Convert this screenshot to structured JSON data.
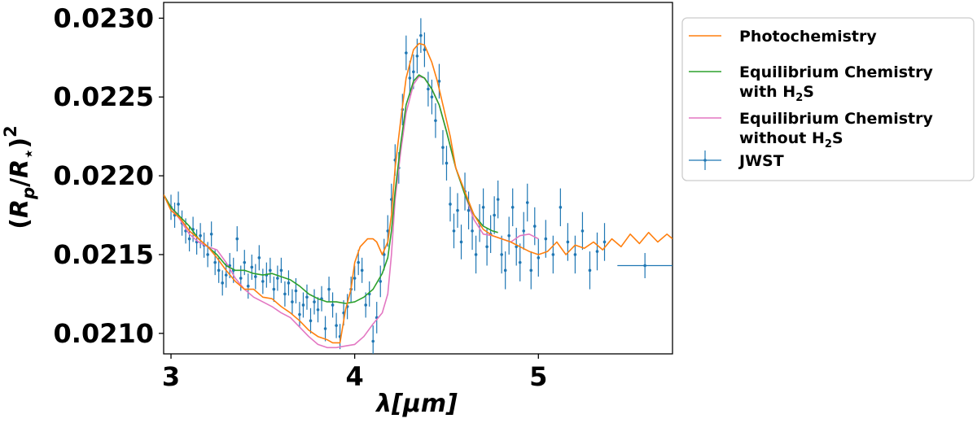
{
  "chart_data": {
    "type": "line",
    "title": "",
    "xlabel": "λ[μm]",
    "ylabel": "(Rp/R⋆)²",
    "xlim": [
      2.96,
      5.73
    ],
    "ylim": [
      0.02087,
      0.0231
    ],
    "xticks": [
      {
        "value": 3,
        "label": "3"
      },
      {
        "value": 4,
        "label": "4"
      },
      {
        "value": 5,
        "label": "5"
      }
    ],
    "yticks": [
      {
        "value": 0.021,
        "label": "0.0210"
      },
      {
        "value": 0.0215,
        "label": "0.0215"
      },
      {
        "value": 0.022,
        "label": "0.0220"
      },
      {
        "value": 0.0225,
        "label": "0.0225"
      },
      {
        "value": 0.023,
        "label": "0.0230"
      }
    ],
    "grid": false,
    "legend_position": "outside-right",
    "series": [
      {
        "name": "Photochemistry",
        "legend_lines": [
          "Photochemistry"
        ],
        "color": "#ff7f0e",
        "points": [
          [
            2.96,
            0.02188
          ],
          [
            3.0,
            0.02178
          ],
          [
            3.05,
            0.02173
          ],
          [
            3.1,
            0.02165
          ],
          [
            3.15,
            0.0216
          ],
          [
            3.2,
            0.02155
          ],
          [
            3.25,
            0.02148
          ],
          [
            3.3,
            0.0214
          ],
          [
            3.35,
            0.02133
          ],
          [
            3.4,
            0.02128
          ],
          [
            3.45,
            0.02128
          ],
          [
            3.5,
            0.02123
          ],
          [
            3.55,
            0.02122
          ],
          [
            3.6,
            0.02117
          ],
          [
            3.65,
            0.02113
          ],
          [
            3.7,
            0.02108
          ],
          [
            3.75,
            0.02102
          ],
          [
            3.8,
            0.02098
          ],
          [
            3.85,
            0.02096
          ],
          [
            3.88,
            0.02094
          ],
          [
            3.92,
            0.02094
          ],
          [
            3.95,
            0.02115
          ],
          [
            3.98,
            0.02128
          ],
          [
            4.0,
            0.02145
          ],
          [
            4.03,
            0.02155
          ],
          [
            4.07,
            0.0216
          ],
          [
            4.1,
            0.0216
          ],
          [
            4.12,
            0.02158
          ],
          [
            4.15,
            0.0215
          ],
          [
            4.18,
            0.02158
          ],
          [
            4.2,
            0.02175
          ],
          [
            4.22,
            0.02205
          ],
          [
            4.25,
            0.02235
          ],
          [
            4.28,
            0.02262
          ],
          [
            4.32,
            0.0228
          ],
          [
            4.35,
            0.02284
          ],
          [
            4.38,
            0.02283
          ],
          [
            4.42,
            0.02272
          ],
          [
            4.45,
            0.0226
          ],
          [
            4.48,
            0.02245
          ],
          [
            4.52,
            0.02225
          ],
          [
            4.55,
            0.02205
          ],
          [
            4.6,
            0.0219
          ],
          [
            4.65,
            0.02175
          ],
          [
            4.7,
            0.02166
          ],
          [
            4.75,
            0.02162
          ],
          [
            4.8,
            0.0216
          ],
          [
            4.85,
            0.02158
          ],
          [
            4.9,
            0.02155
          ],
          [
            4.95,
            0.02152
          ],
          [
            5.0,
            0.0215
          ],
          [
            5.05,
            0.02152
          ],
          [
            5.1,
            0.02158
          ],
          [
            5.15,
            0.0215
          ],
          [
            5.2,
            0.02156
          ],
          [
            5.25,
            0.02154
          ],
          [
            5.3,
            0.02158
          ],
          [
            5.35,
            0.02153
          ],
          [
            5.4,
            0.0216
          ],
          [
            5.45,
            0.02155
          ],
          [
            5.5,
            0.02163
          ],
          [
            5.55,
            0.02157
          ],
          [
            5.6,
            0.02164
          ],
          [
            5.65,
            0.02158
          ],
          [
            5.7,
            0.02163
          ],
          [
            5.73,
            0.0216
          ]
        ]
      },
      {
        "name": "Equilibrium Chemistry with H2S",
        "legend_lines": [
          "Equilibrium Chemistry",
          "with H",
          "2",
          "S"
        ],
        "color": "#2ca02c",
        "points": [
          [
            2.96,
            0.02188
          ],
          [
            3.0,
            0.0218
          ],
          [
            3.05,
            0.02174
          ],
          [
            3.1,
            0.02168
          ],
          [
            3.15,
            0.0216
          ],
          [
            3.2,
            0.02155
          ],
          [
            3.25,
            0.0215
          ],
          [
            3.3,
            0.02143
          ],
          [
            3.35,
            0.0214
          ],
          [
            3.4,
            0.0214
          ],
          [
            3.45,
            0.02138
          ],
          [
            3.5,
            0.02137
          ],
          [
            3.55,
            0.02138
          ],
          [
            3.6,
            0.02136
          ],
          [
            3.65,
            0.02134
          ],
          [
            3.7,
            0.0213
          ],
          [
            3.75,
            0.02125
          ],
          [
            3.8,
            0.02122
          ],
          [
            3.85,
            0.0212
          ],
          [
            3.9,
            0.0212
          ],
          [
            3.95,
            0.02119
          ],
          [
            4.0,
            0.0212
          ],
          [
            4.05,
            0.02123
          ],
          [
            4.1,
            0.02128
          ],
          [
            4.15,
            0.02138
          ],
          [
            4.18,
            0.02148
          ],
          [
            4.2,
            0.02165
          ],
          [
            4.22,
            0.0219
          ],
          [
            4.25,
            0.0222
          ],
          [
            4.28,
            0.02245
          ],
          [
            4.32,
            0.0226
          ],
          [
            4.35,
            0.02264
          ],
          [
            4.38,
            0.02262
          ],
          [
            4.42,
            0.02255
          ],
          [
            4.46,
            0.02245
          ],
          [
            4.5,
            0.02228
          ],
          [
            4.55,
            0.02205
          ],
          [
            4.6,
            0.02188
          ],
          [
            4.65,
            0.02175
          ],
          [
            4.7,
            0.02168
          ],
          [
            4.75,
            0.02165
          ],
          [
            4.78,
            0.02164
          ]
        ]
      },
      {
        "name": "Equilibrium Chemistry without H2S",
        "legend_lines": [
          "Equilibrium Chemistry",
          "without H",
          "2",
          "S"
        ],
        "color": "#e377c2",
        "points": [
          [
            2.96,
            0.02188
          ],
          [
            3.0,
            0.0218
          ],
          [
            3.05,
            0.02172
          ],
          [
            3.1,
            0.02163
          ],
          [
            3.15,
            0.02158
          ],
          [
            3.2,
            0.02155
          ],
          [
            3.25,
            0.02153
          ],
          [
            3.3,
            0.02145
          ],
          [
            3.35,
            0.02135
          ],
          [
            3.4,
            0.02128
          ],
          [
            3.45,
            0.02123
          ],
          [
            3.5,
            0.0212
          ],
          [
            3.55,
            0.02117
          ],
          [
            3.6,
            0.02113
          ],
          [
            3.65,
            0.0211
          ],
          [
            3.7,
            0.02104
          ],
          [
            3.75,
            0.02098
          ],
          [
            3.8,
            0.02093
          ],
          [
            3.85,
            0.02091
          ],
          [
            3.9,
            0.02091
          ],
          [
            3.95,
            0.02092
          ],
          [
            4.0,
            0.02093
          ],
          [
            4.05,
            0.02098
          ],
          [
            4.1,
            0.02106
          ],
          [
            4.15,
            0.02113
          ],
          [
            4.18,
            0.02125
          ],
          [
            4.2,
            0.0215
          ],
          [
            4.22,
            0.02185
          ],
          [
            4.25,
            0.02215
          ],
          [
            4.28,
            0.0224
          ],
          [
            4.32,
            0.02258
          ],
          [
            4.35,
            0.02263
          ],
          [
            4.38,
            0.02262
          ],
          [
            4.42,
            0.02255
          ],
          [
            4.46,
            0.02245
          ],
          [
            4.5,
            0.02228
          ],
          [
            4.55,
            0.02205
          ],
          [
            4.6,
            0.02188
          ],
          [
            4.65,
            0.02172
          ],
          [
            4.7,
            0.02163
          ],
          [
            4.75,
            0.02162
          ],
          [
            4.8,
            0.0216
          ],
          [
            4.85,
            0.02158
          ],
          [
            4.9,
            0.02162
          ],
          [
            4.95,
            0.02163
          ],
          [
            5.0,
            0.0216
          ]
        ]
      }
    ],
    "errorbar_series": {
      "name": "JWST",
      "legend_lines": [
        "JWST"
      ],
      "color": "#1f77b4",
      "points": [
        [
          3.0,
          0.0218,
          8e-05
        ],
        [
          3.02,
          0.02175,
          8e-05
        ],
        [
          3.04,
          0.02182,
          8e-05
        ],
        [
          3.06,
          0.0217,
          8e-05
        ],
        [
          3.08,
          0.02165,
          8e-05
        ],
        [
          3.1,
          0.0216,
          8e-05
        ],
        [
          3.12,
          0.02166,
          8e-05
        ],
        [
          3.14,
          0.02158,
          8e-05
        ],
        [
          3.16,
          0.02162,
          8e-05
        ],
        [
          3.18,
          0.02156,
          8e-05
        ],
        [
          3.2,
          0.0215,
          8e-05
        ],
        [
          3.22,
          0.02163,
          8e-05
        ],
        [
          3.24,
          0.02145,
          8e-05
        ],
        [
          3.26,
          0.0214,
          8e-05
        ],
        [
          3.28,
          0.02132,
          8e-05
        ],
        [
          3.3,
          0.02137,
          8e-05
        ],
        [
          3.32,
          0.02143,
          8e-05
        ],
        [
          3.34,
          0.0214,
          8e-05
        ],
        [
          3.36,
          0.0216,
          8e-05
        ],
        [
          3.38,
          0.02135,
          8e-05
        ],
        [
          3.4,
          0.02145,
          8e-05
        ],
        [
          3.42,
          0.0213,
          8e-05
        ],
        [
          3.44,
          0.02142,
          8e-05
        ],
        [
          3.46,
          0.02136,
          8e-05
        ],
        [
          3.48,
          0.02148,
          8e-05
        ],
        [
          3.5,
          0.02133,
          8e-05
        ],
        [
          3.52,
          0.02137,
          8e-05
        ],
        [
          3.54,
          0.0214,
          8e-05
        ],
        [
          3.56,
          0.02128,
          8e-05
        ],
        [
          3.58,
          0.02135,
          8e-05
        ],
        [
          3.6,
          0.0214,
          8e-05
        ],
        [
          3.62,
          0.02125,
          8e-05
        ],
        [
          3.64,
          0.02132,
          8e-05
        ],
        [
          3.66,
          0.0212,
          8e-05
        ],
        [
          3.68,
          0.02127,
          8e-05
        ],
        [
          3.7,
          0.02112,
          8e-05
        ],
        [
          3.72,
          0.02118,
          8e-05
        ],
        [
          3.74,
          0.02123,
          8e-05
        ],
        [
          3.76,
          0.02108,
          8e-05
        ],
        [
          3.78,
          0.0212,
          8e-05
        ],
        [
          3.8,
          0.02115,
          8e-05
        ],
        [
          3.82,
          0.02122,
          8e-05
        ],
        [
          3.84,
          0.02103,
          8e-05
        ],
        [
          3.86,
          0.02128,
          8e-05
        ],
        [
          3.88,
          0.02118,
          8e-05
        ],
        [
          3.9,
          0.02105,
          8e-05
        ],
        [
          3.92,
          0.02098,
          8e-05
        ],
        [
          3.94,
          0.02113,
          8e-05
        ],
        [
          3.96,
          0.02117,
          8e-05
        ],
        [
          3.98,
          0.02128,
          8e-05
        ],
        [
          4.0,
          0.02135,
          8e-05
        ],
        [
          4.02,
          0.02145,
          8e-05
        ],
        [
          4.04,
          0.0214,
          8e-05
        ],
        [
          4.06,
          0.02118,
          8e-05
        ],
        [
          4.08,
          0.02125,
          8e-05
        ],
        [
          4.1,
          0.02095,
          0.0001
        ],
        [
          4.12,
          0.0211,
          0.0001
        ],
        [
          4.14,
          0.02133,
          0.0001
        ],
        [
          4.16,
          0.0215,
          0.0001
        ],
        [
          4.18,
          0.02165,
          0.0001
        ],
        [
          4.2,
          0.02185,
          0.0001
        ],
        [
          4.22,
          0.0221,
          0.0001
        ],
        [
          4.24,
          0.02205,
          0.0001
        ],
        [
          4.26,
          0.02242,
          0.0001
        ],
        [
          4.28,
          0.02278,
          0.00011
        ],
        [
          4.3,
          0.02262,
          0.00011
        ],
        [
          4.32,
          0.02266,
          0.00011
        ],
        [
          4.34,
          0.02276,
          0.00011
        ],
        [
          4.36,
          0.02289,
          0.00011
        ],
        [
          4.38,
          0.0228,
          0.00011
        ],
        [
          4.4,
          0.02255,
          0.00011
        ],
        [
          4.42,
          0.0225,
          0.00011
        ],
        [
          4.44,
          0.02235,
          0.00011
        ],
        [
          4.46,
          0.0226,
          0.00011
        ],
        [
          4.48,
          0.02218,
          0.00011
        ],
        [
          4.5,
          0.02208,
          0.00011
        ],
        [
          4.52,
          0.02182,
          0.00011
        ],
        [
          4.54,
          0.02165,
          0.00011
        ],
        [
          4.56,
          0.02178,
          0.00011
        ],
        [
          4.58,
          0.02158,
          0.00011
        ],
        [
          4.6,
          0.0219,
          0.00012
        ],
        [
          4.62,
          0.02178,
          0.00012
        ],
        [
          4.64,
          0.02165,
          0.00012
        ],
        [
          4.66,
          0.0215,
          0.00012
        ],
        [
          4.68,
          0.0217,
          0.00012
        ],
        [
          4.7,
          0.0218,
          0.00012
        ],
        [
          4.72,
          0.02155,
          0.00012
        ],
        [
          4.74,
          0.02163,
          0.00012
        ],
        [
          4.76,
          0.02175,
          0.00012
        ],
        [
          4.78,
          0.02185,
          0.00012
        ],
        [
          4.8,
          0.0215,
          0.00012
        ],
        [
          4.82,
          0.0214,
          0.00012
        ],
        [
          4.84,
          0.02162,
          0.00012
        ],
        [
          4.86,
          0.0218,
          0.00012
        ],
        [
          4.88,
          0.02155,
          0.00012
        ],
        [
          4.9,
          0.02145,
          0.00012
        ],
        [
          4.92,
          0.02165,
          0.00012
        ],
        [
          4.94,
          0.02183,
          0.00012
        ],
        [
          4.96,
          0.0214,
          0.00012
        ],
        [
          4.98,
          0.02168,
          0.00012
        ],
        [
          5.0,
          0.02148,
          0.00012
        ],
        [
          5.04,
          0.0216,
          0.00012
        ],
        [
          5.08,
          0.0215,
          0.00012
        ],
        [
          5.12,
          0.0218,
          0.00012
        ],
        [
          5.16,
          0.02158,
          0.00012
        ],
        [
          5.2,
          0.0215,
          0.00012
        ],
        [
          5.24,
          0.02165,
          0.00012
        ],
        [
          5.28,
          0.0214,
          0.00012
        ],
        [
          5.32,
          0.02152,
          0.00012
        ],
        [
          5.36,
          0.02158,
          0.00012
        ]
      ],
      "wide_point": {
        "x": 5.58,
        "y": 0.02143,
        "xerr": 0.15,
        "yerr": 8e-05
      }
    }
  }
}
